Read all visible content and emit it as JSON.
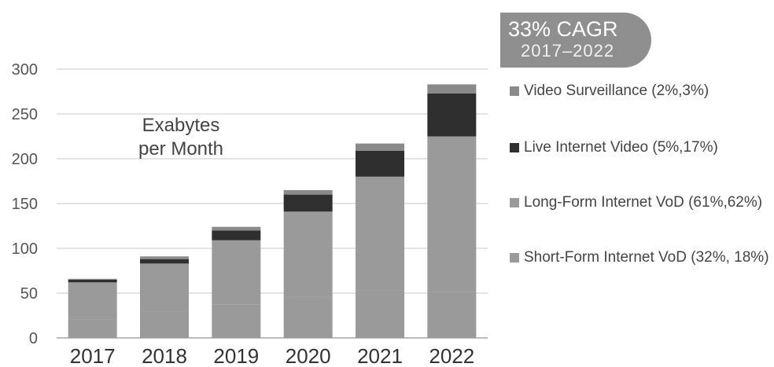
{
  "badge": {
    "line1": "33% CAGR",
    "line2": "2017–2022"
  },
  "chart_data": {
    "type": "bar",
    "stacked": true,
    "categories": [
      "2017",
      "2018",
      "2019",
      "2020",
      "2021",
      "2022"
    ],
    "series": [
      {
        "name": "Short-Form Internet VoD (32%, 18%)",
        "color": "#9a9a9a",
        "values": [
          21,
          29,
          37,
          46,
          53,
          51
        ]
      },
      {
        "name": "Long-Form Internet VoD (61%,62%)",
        "color": "#9a9a9a",
        "values": [
          41,
          54,
          72,
          95,
          127,
          174
        ]
      },
      {
        "name": "Live Internet Video (5%,17%)",
        "color": "#2f2f2f",
        "values": [
          3,
          5,
          11,
          19,
          29,
          48
        ]
      },
      {
        "name": "Video Surveillance (2%,3%)",
        "color": "#8a8a8a",
        "values": [
          1,
          3,
          4,
          5,
          8,
          10
        ]
      }
    ],
    "unit_label_lines": [
      "Exabytes",
      "per Month"
    ],
    "yticks": [
      0,
      50,
      100,
      150,
      200,
      250,
      300
    ],
    "ylim": [
      0,
      300
    ],
    "grid": true,
    "legend_order": [
      3,
      2,
      1,
      0
    ]
  }
}
